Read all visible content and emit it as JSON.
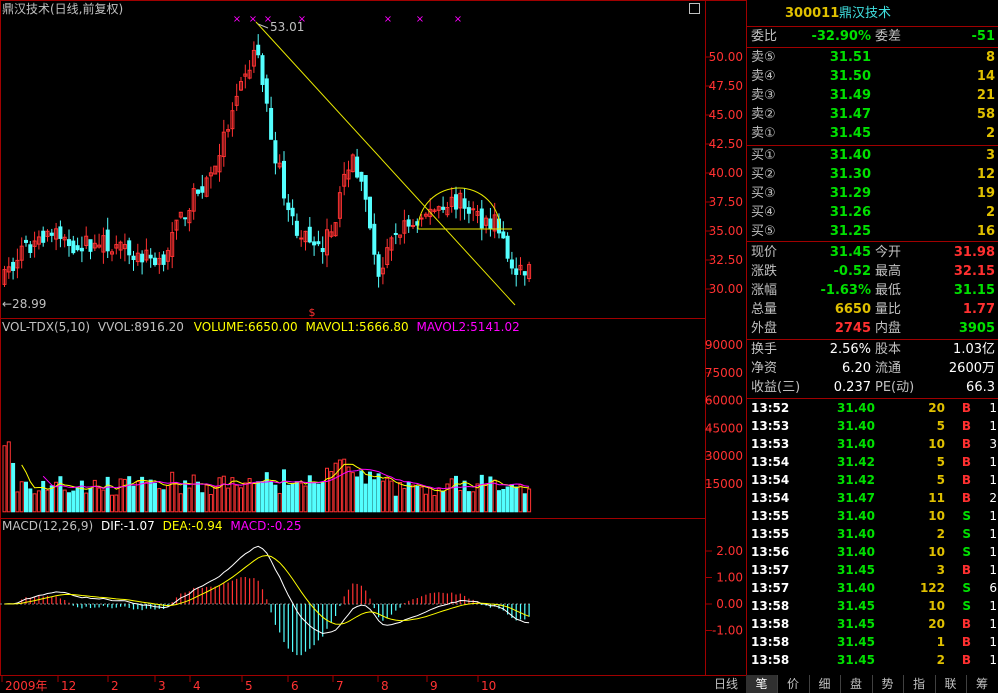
{
  "chart_title": "鼎汉技术(日线,前复权)",
  "price_axis": [
    "50.00",
    "47.50",
    "45.00",
    "42.50",
    "40.00",
    "37.50",
    "35.00",
    "32.50",
    "30.00"
  ],
  "price_high_label": "53.01",
  "price_low_label": "←28.99",
  "vol_header": {
    "name": "VOL-TDX(5,10)",
    "vvol": "VVOL:8916.20",
    "volume": "VOLUME:6650.00",
    "mavol1": "MAVOL1:5666.80",
    "mavol2": "MAVOL2:5141.02"
  },
  "vol_axis": [
    "90000",
    "75000",
    "60000",
    "45000",
    "30000",
    "15000"
  ],
  "macd_header": {
    "name": "MACD(12,26,9)",
    "dif": "DIF:-1.07",
    "dea": "DEA:-0.94",
    "macd": "MACD:-0.25"
  },
  "macd_axis": [
    "2.00",
    "1.00",
    "0.00",
    "-1.00"
  ],
  "x_labels": [
    "2009年",
    "12",
    "2",
    "3",
    "4",
    "5",
    "6",
    "7",
    "8",
    "9",
    "10"
  ],
  "period_tab": "日线",
  "colors": {
    "up": "#ff3232",
    "down": "#54ffff",
    "ma_line": "#ffff00",
    "frame": "#a00000",
    "pink": "#ff00ff",
    "grid": "#a00000"
  },
  "panel": {
    "code": "300011",
    "name": "鼎汉技术",
    "wei_bi_label": "委比",
    "wei_bi": "-32.90%",
    "wei_cha_label": "委差",
    "wei_cha": "-51",
    "sell": [
      {
        "label": "卖⑤",
        "price": "31.51",
        "vol": "8"
      },
      {
        "label": "卖④",
        "price": "31.50",
        "vol": "14"
      },
      {
        "label": "卖③",
        "price": "31.49",
        "vol": "21"
      },
      {
        "label": "卖②",
        "price": "31.47",
        "vol": "58"
      },
      {
        "label": "卖①",
        "price": "31.45",
        "vol": "2"
      }
    ],
    "buy": [
      {
        "label": "买①",
        "price": "31.40",
        "vol": "3"
      },
      {
        "label": "买②",
        "price": "31.30",
        "vol": "12"
      },
      {
        "label": "买③",
        "price": "31.29",
        "vol": "19"
      },
      {
        "label": "买④",
        "price": "31.26",
        "vol": "2"
      },
      {
        "label": "买⑤",
        "price": "31.25",
        "vol": "16"
      }
    ],
    "quote": [
      {
        "l1": "现价",
        "v1": "31.45",
        "c1": "green",
        "l2": "今开",
        "v2": "31.98",
        "c2": "red"
      },
      {
        "l1": "涨跌",
        "v1": "-0.52",
        "c1": "green",
        "l2": "最高",
        "v2": "32.15",
        "c2": "red"
      },
      {
        "l1": "涨幅",
        "v1": "-1.63%",
        "c1": "green",
        "l2": "最低",
        "v2": "31.15",
        "c2": "green"
      },
      {
        "l1": "总量",
        "v1": "6650",
        "c1": "gold",
        "l2": "量比",
        "v2": "1.77",
        "c2": "red"
      },
      {
        "l1": "外盘",
        "v1": "2745",
        "c1": "red",
        "l2": "内盘",
        "v2": "3905",
        "c2": "green"
      }
    ],
    "stats": [
      {
        "l1": "换手",
        "v1": "2.56%",
        "l2": "股本",
        "v2": "1.03亿"
      },
      {
        "l1": "净资",
        "v1": "6.20",
        "l2": "流通",
        "v2": "2600万"
      },
      {
        "l1": "收益(三)",
        "v1": "0.237",
        "l2": "PE(动)",
        "v2": "66.3"
      }
    ],
    "ticks": [
      {
        "time": "13:52",
        "price": "31.40",
        "vol": "20",
        "side": "B",
        "n": "1"
      },
      {
        "time": "13:53",
        "price": "31.40",
        "vol": "5",
        "side": "B",
        "n": "1"
      },
      {
        "time": "13:53",
        "price": "31.40",
        "vol": "10",
        "side": "B",
        "n": "3"
      },
      {
        "time": "13:54",
        "price": "31.42",
        "vol": "5",
        "side": "B",
        "n": "1"
      },
      {
        "time": "13:54",
        "price": "31.42",
        "vol": "5",
        "side": "B",
        "n": "1"
      },
      {
        "time": "13:54",
        "price": "31.47",
        "vol": "11",
        "side": "B",
        "n": "2"
      },
      {
        "time": "13:55",
        "price": "31.40",
        "vol": "10",
        "side": "S",
        "n": "1"
      },
      {
        "time": "13:55",
        "price": "31.40",
        "vol": "2",
        "side": "S",
        "n": "1"
      },
      {
        "time": "13:56",
        "price": "31.40",
        "vol": "10",
        "side": "S",
        "n": "1"
      },
      {
        "time": "13:57",
        "price": "31.45",
        "vol": "3",
        "side": "B",
        "n": "1"
      },
      {
        "time": "13:57",
        "price": "31.40",
        "vol": "122",
        "side": "S",
        "n": "6"
      },
      {
        "time": "13:58",
        "price": "31.45",
        "vol": "10",
        "side": "S",
        "n": "1"
      },
      {
        "time": "13:58",
        "price": "31.45",
        "vol": "20",
        "side": "B",
        "n": "1"
      },
      {
        "time": "13:58",
        "price": "31.45",
        "vol": "1",
        "side": "B",
        "n": "1"
      },
      {
        "time": "13:58",
        "price": "31.45",
        "vol": "2",
        "side": "B",
        "n": "1"
      }
    ],
    "tabs": [
      "笔",
      "价",
      "细",
      "盘",
      "势",
      "指",
      "联",
      "筹"
    ]
  }
}
